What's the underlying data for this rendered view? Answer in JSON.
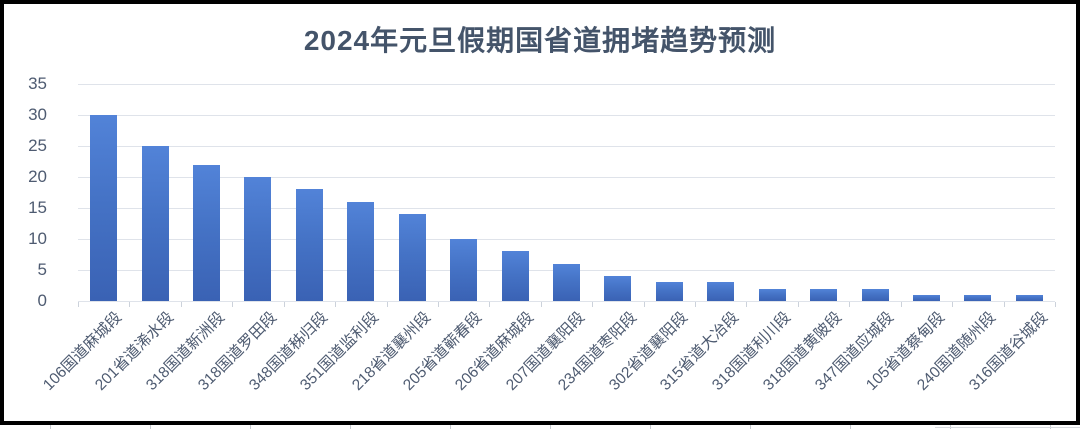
{
  "chart": {
    "background": "#ffffff",
    "frame_border_color": "#000000",
    "title_color": "#44546a",
    "axis_label_color": "#4e5b71",
    "gridline_color": "#dfe3ea",
    "bar_gradient_top": "#5283d8",
    "bar_gradient_mid": "#4573c6",
    "bar_gradient_bottom": "#3a62b4"
  },
  "chart_data": {
    "type": "bar",
    "title": "2024年元旦假期国省道拥堵趋势预测",
    "categories": [
      "106国道麻城段",
      "201省道浠水段",
      "318国道新洲段",
      "318国道罗田段",
      "348国道秭归段",
      "351国道监利段",
      "218省道襄州段",
      "205省道蕲春段",
      "206省道麻城段",
      "207国道襄阳段",
      "234国道枣阳段",
      "302省道襄阳段",
      "315省道大冶段",
      "318国道利川段",
      "318国道黄陂段",
      "347国道应城段",
      "105省道蔡甸段",
      "240国道随州段",
      "316国道谷城段"
    ],
    "values": [
      30,
      25,
      22,
      20,
      18,
      16,
      14,
      10,
      8,
      6,
      4,
      3,
      3,
      2,
      2,
      2,
      1,
      1,
      1
    ],
    "xlabel": "",
    "ylabel": "",
    "ylim": [
      0,
      35
    ],
    "yticks": [
      0,
      5,
      10,
      15,
      20,
      25,
      30,
      35
    ],
    "grid": true,
    "legend": false,
    "bar_orientation": "vertical"
  }
}
